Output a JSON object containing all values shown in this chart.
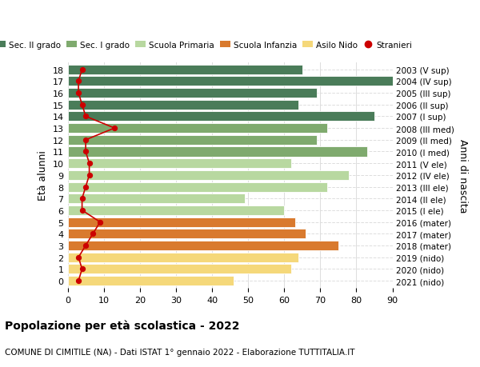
{
  "ages": [
    18,
    17,
    16,
    15,
    14,
    13,
    12,
    11,
    10,
    9,
    8,
    7,
    6,
    5,
    4,
    3,
    2,
    1,
    0
  ],
  "values": [
    65,
    91,
    69,
    64,
    85,
    72,
    69,
    83,
    62,
    78,
    72,
    49,
    60,
    63,
    66,
    75,
    64,
    62,
    46
  ],
  "stranieri": [
    4,
    3,
    3,
    4,
    5,
    13,
    5,
    5,
    6,
    6,
    5,
    4,
    4,
    9,
    7,
    5,
    3,
    4,
    3
  ],
  "right_labels": [
    "2003 (V sup)",
    "2004 (IV sup)",
    "2005 (III sup)",
    "2006 (II sup)",
    "2007 (I sup)",
    "2008 (III med)",
    "2009 (II med)",
    "2010 (I med)",
    "2011 (V ele)",
    "2012 (IV ele)",
    "2013 (III ele)",
    "2014 (II ele)",
    "2015 (I ele)",
    "2016 (mater)",
    "2017 (mater)",
    "2018 (mater)",
    "2019 (nido)",
    "2020 (nido)",
    "2021 (nido)"
  ],
  "bar_colors": [
    "#4a7c59",
    "#4a7c59",
    "#4a7c59",
    "#4a7c59",
    "#4a7c59",
    "#7faa6e",
    "#7faa6e",
    "#7faa6e",
    "#b8d8a0",
    "#b8d8a0",
    "#b8d8a0",
    "#b8d8a0",
    "#b8d8a0",
    "#d97a2e",
    "#d97a2e",
    "#d97a2e",
    "#f5d87a",
    "#f5d87a",
    "#f5d87a"
  ],
  "legend_labels": [
    "Sec. II grado",
    "Sec. I grado",
    "Scuola Primaria",
    "Scuola Infanzia",
    "Asilo Nido",
    "Stranieri"
  ],
  "legend_colors": [
    "#4a7c59",
    "#7faa6e",
    "#b8d8a0",
    "#d97a2e",
    "#f5d87a",
    "#cc0000"
  ],
  "ylabel": "Età alunni",
  "right_ylabel": "Anni di nascita",
  "title": "Popolazione per età scolastica - 2022",
  "subtitle": "COMUNE DI CIMITILE (NA) - Dati ISTAT 1° gennaio 2022 - Elaborazione TUTTITALIA.IT",
  "xlim": [
    0,
    90
  ],
  "xticks": [
    0,
    10,
    20,
    30,
    40,
    50,
    60,
    70,
    80,
    90
  ],
  "background_color": "#ffffff",
  "grid_color": "#dddddd",
  "stranieri_color": "#cc0000",
  "bar_height": 0.82
}
